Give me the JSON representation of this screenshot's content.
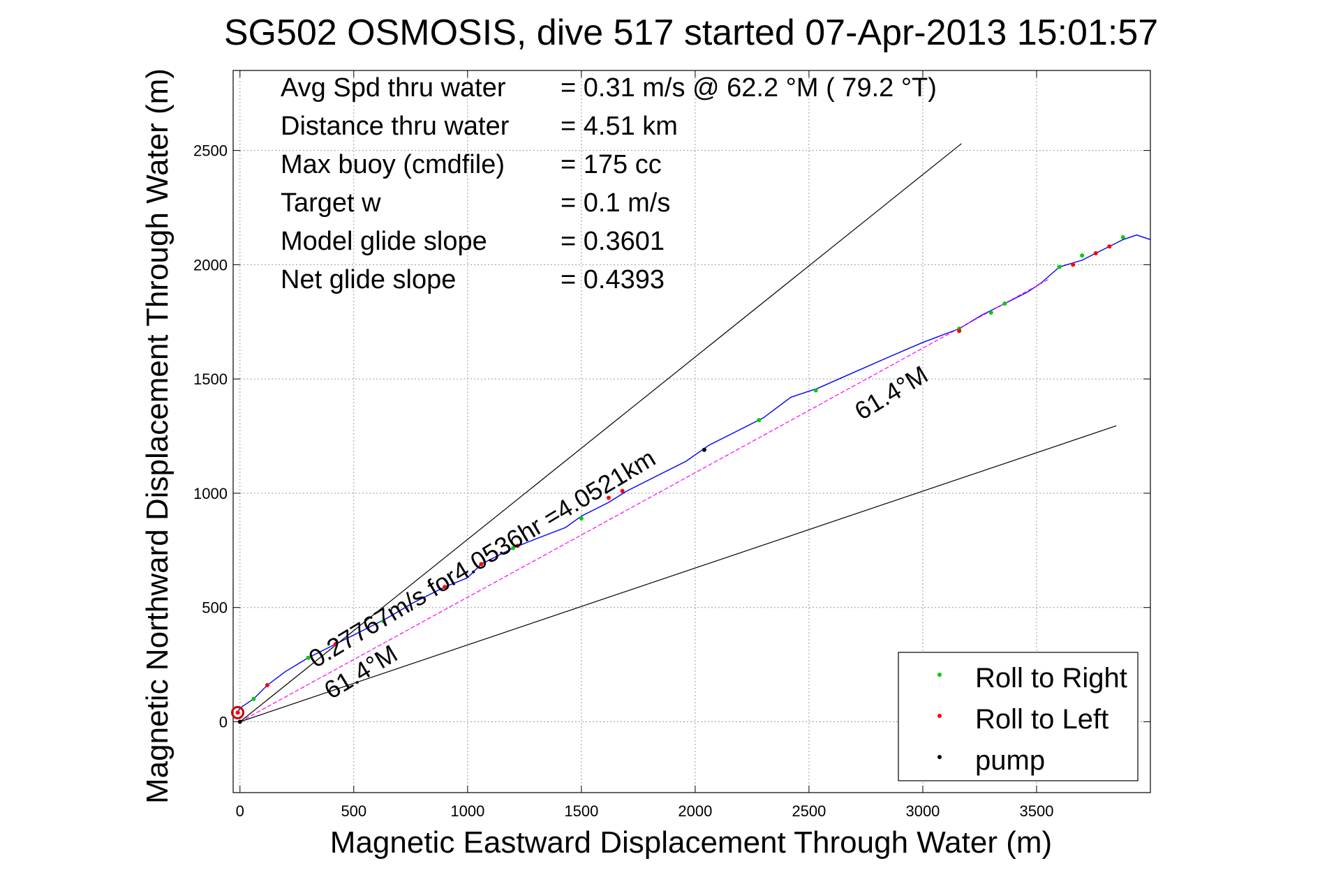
{
  "chart_data": {
    "type": "line",
    "title": "SG502 OSMOSIS, dive 517 started 07-Apr-2013 15:01:57",
    "xlabel": "Magnetic Eastward Displacement Through Water (m)",
    "ylabel": "Magnetic Northward Displacement Through Water (m)",
    "xlim": [
      -30,
      4000
    ],
    "ylim": [
      -310,
      2850
    ],
    "xticks": [
      0,
      500,
      1000,
      1500,
      2000,
      2500,
      3000,
      3500
    ],
    "yticks": [
      0,
      500,
      1000,
      1500,
      2000,
      2500
    ],
    "grid": true,
    "legend_position": "bottom-right",
    "stats": [
      {
        "label": "Avg Spd thru water",
        "value": "=  0.31 m/s @  62.2 °M ( 79.2 °T)"
      },
      {
        "label": "Distance thru water",
        "value": "=  4.51 km"
      },
      {
        "label": "Max buoy (cmdfile)",
        "value": "= 175 cc"
      },
      {
        "label": "Target w",
        "value": "= 0.1 m/s"
      },
      {
        "label": "Model glide slope",
        "value": "= 0.3601"
      },
      {
        "label": "Net glide slope",
        "value": "= 0.4393"
      }
    ],
    "annotations": {
      "speed_label": "0.27767m/s for4.0536hr =4.0521km",
      "heading_label_upper": "61.4°M",
      "heading_label_lower": "61.4°M"
    },
    "legend": [
      {
        "label": "Roll to Right",
        "color": "#00cc00"
      },
      {
        "label": "Roll to Left",
        "color": "#ff0000"
      },
      {
        "label": "pump",
        "color": "#000000"
      }
    ],
    "series": [
      {
        "name": "",
        "color": "#0000ff",
        "x": [
          -10,
          0,
          60,
          120,
          200,
          300,
          420,
          540,
          640,
          760,
          900,
          1000,
          1060,
          1200,
          1300,
          1430,
          1500,
          1620,
          1700,
          1820,
          1960,
          2060,
          2180,
          2300,
          2420,
          2540,
          2700,
          2860,
          3000,
          3160,
          3260,
          3360,
          3460,
          3520,
          3600,
          3700,
          3760,
          3820,
          3880,
          3940,
          4000
        ],
        "y": [
          40,
          60,
          100,
          160,
          220,
          280,
          340,
          400,
          450,
          520,
          590,
          630,
          690,
          760,
          800,
          850,
          900,
          960,
          1010,
          1070,
          1140,
          1210,
          1270,
          1330,
          1420,
          1460,
          1530,
          1600,
          1660,
          1720,
          1780,
          1830,
          1880,
          1920,
          1990,
          2020,
          2050,
          2080,
          2110,
          2130,
          2110
        ]
      },
      {
        "name": "",
        "color": "#ff00ff",
        "x": [
          0,
          3560
        ],
        "y": [
          0,
          1940
        ]
      },
      {
        "name": "",
        "color": "#000000",
        "x": [
          0,
          3170
        ],
        "y": [
          0,
          2530
        ]
      },
      {
        "name": "",
        "color": "#000000",
        "x": [
          0,
          3850
        ],
        "y": [
          0,
          1295
        ]
      }
    ],
    "roll_right_points": {
      "x": [
        60,
        300,
        630,
        1200,
        1500,
        2280,
        2530,
        3160,
        3300,
        3360,
        3600,
        3700,
        3880
      ],
      "y": [
        100,
        280,
        440,
        760,
        890,
        1320,
        1450,
        1720,
        1790,
        1830,
        1990,
        2040,
        2120
      ]
    },
    "roll_left_points": {
      "x": [
        -10,
        120,
        420,
        900,
        1060,
        1220,
        1620,
        1680,
        3160,
        3660,
        3760,
        3820
      ],
      "y": [
        40,
        160,
        340,
        590,
        690,
        770,
        980,
        1010,
        1710,
        2000,
        2050,
        2080
      ]
    },
    "pump_points": {
      "x": [
        0,
        2040
      ],
      "y": [
        0,
        1190
      ]
    },
    "start_marker": {
      "x": -10,
      "y": 40,
      "color": "#cc0000"
    }
  }
}
